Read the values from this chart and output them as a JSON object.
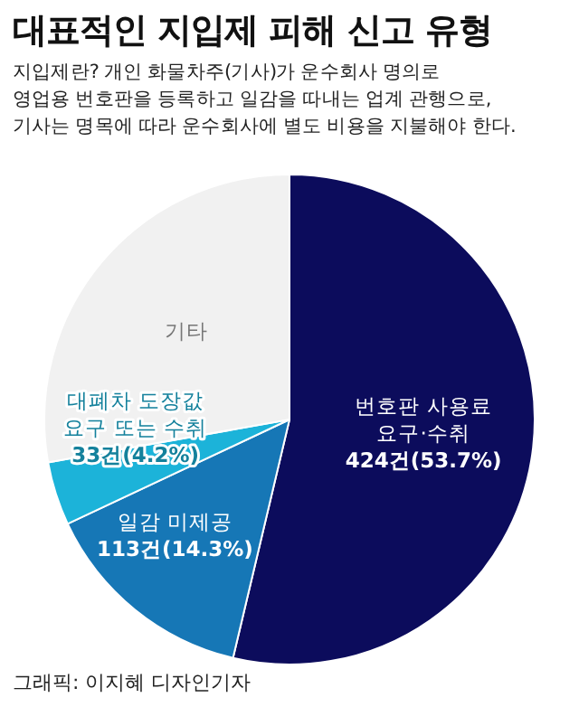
{
  "chart_data": {
    "type": "pie",
    "title": "대표적인 지입제 피해 신고 유형",
    "subtitle": "지입제란? 개인 화물차주(기사)가 운수회사 명의로\n영업용 번호판을 등록하고 일감을 따내는 업계 관행으로,\n기사는 명목에 따라 운수회사에 별도 비용을 지불해야 한다.",
    "categories": [
      "번호판 사용료 요구·수취",
      "일감 미제공",
      "대폐차 도장값 요구 또는 수취",
      "기타"
    ],
    "values": [
      53.7,
      14.3,
      4.2,
      27.8
    ],
    "colors": [
      "#0c0c5c",
      "#1677b6",
      "#1cb3d9",
      "#f1f1f1"
    ],
    "value_labels": [
      "424건(53.7%)",
      "113건(14.3%)",
      "33건(4.2%)",
      null
    ],
    "legend": false,
    "annotations": [
      "그래픽: 이지혜 디자인기자"
    ]
  }
}
